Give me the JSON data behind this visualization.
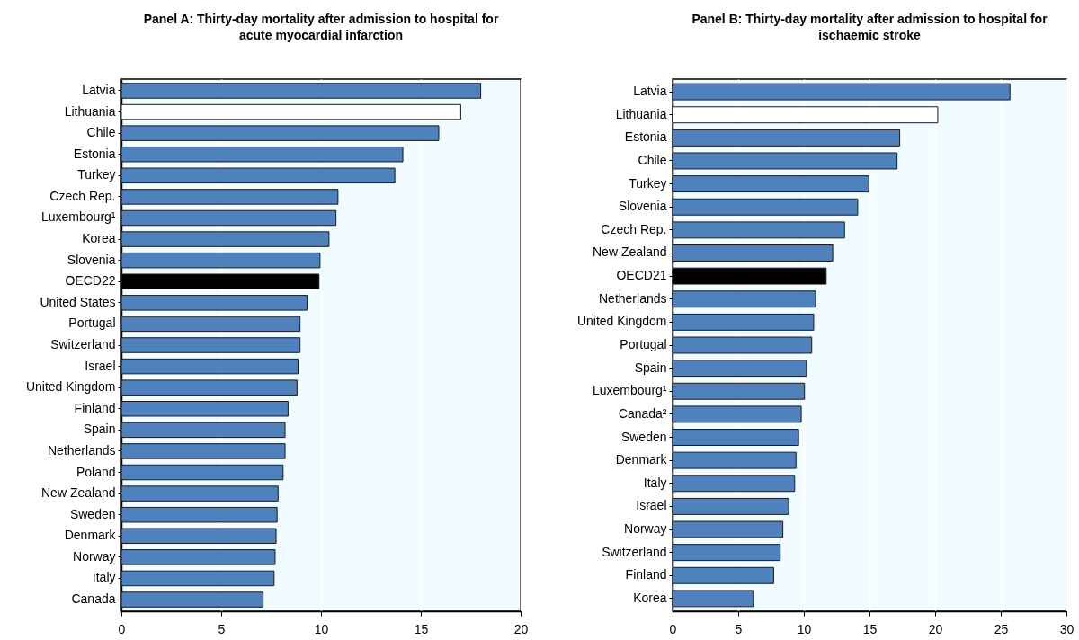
{
  "chart_data": [
    {
      "type": "bar",
      "orientation": "horizontal",
      "title": "Panel A: Thirty-day mortality after admission to hospital for acute myocardial infarction",
      "categories": [
        "Latvia",
        "Lithuania",
        "Chile",
        "Estonia",
        "Turkey",
        "Czech Rep.",
        "Luxembourg¹",
        "Korea",
        "Slovenia",
        "OECD22",
        "United States",
        "Portugal",
        "Switzerland",
        "Israel",
        "United Kingdom",
        "Finland",
        "Spain",
        "Netherlands",
        "Poland",
        "New Zealand",
        "Sweden",
        "Denmark",
        "Norway",
        "Italy",
        "Canada"
      ],
      "values": [
        18.0,
        17.0,
        15.9,
        14.1,
        13.7,
        10.85,
        10.75,
        10.4,
        9.95,
        9.9,
        9.3,
        8.95,
        8.95,
        8.85,
        8.8,
        8.35,
        8.2,
        8.2,
        8.1,
        7.85,
        7.8,
        7.75,
        7.7,
        7.65,
        7.1
      ],
      "colors": [
        "#4f81bd",
        "#ffffff",
        "#4f81bd",
        "#4f81bd",
        "#4f81bd",
        "#4f81bd",
        "#4f81bd",
        "#4f81bd",
        "#4f81bd",
        "#000000",
        "#4f81bd",
        "#4f81bd",
        "#4f81bd",
        "#4f81bd",
        "#4f81bd",
        "#4f81bd",
        "#4f81bd",
        "#4f81bd",
        "#4f81bd",
        "#4f81bd",
        "#4f81bd",
        "#4f81bd",
        "#4f81bd",
        "#4f81bd",
        "#4f81bd"
      ],
      "xlim": [
        0,
        20
      ],
      "xticks": [
        0,
        5,
        10,
        15,
        20
      ],
      "grid": "x"
    },
    {
      "type": "bar",
      "orientation": "horizontal",
      "title": "Panel B: Thirty-day mortality after admission to hospital for ischaemic stroke",
      "categories": [
        "Latvia",
        "Lithuania",
        "Estonia",
        "Chile",
        "Turkey",
        "Slovenia",
        "Czech Rep.",
        "New Zealand",
        "OECD21",
        "Netherlands",
        "United Kingdom",
        "Portugal",
        "Spain",
        "Luxembourg¹",
        "Canada²",
        "Sweden",
        "Denmark",
        "Italy",
        "Israel",
        "Norway",
        "Switzerland",
        "Finland",
        "Korea"
      ],
      "values": [
        25.7,
        20.2,
        17.3,
        17.1,
        14.95,
        14.1,
        13.1,
        12.2,
        11.7,
        10.9,
        10.75,
        10.6,
        10.2,
        10.05,
        9.8,
        9.6,
        9.4,
        9.3,
        8.85,
        8.4,
        8.2,
        7.7,
        6.15
      ],
      "colors": [
        "#4f81bd",
        "#ffffff",
        "#4f81bd",
        "#4f81bd",
        "#4f81bd",
        "#4f81bd",
        "#4f81bd",
        "#4f81bd",
        "#000000",
        "#4f81bd",
        "#4f81bd",
        "#4f81bd",
        "#4f81bd",
        "#4f81bd",
        "#4f81bd",
        "#4f81bd",
        "#4f81bd",
        "#4f81bd",
        "#4f81bd",
        "#4f81bd",
        "#4f81bd",
        "#4f81bd",
        "#4f81bd"
      ],
      "xlim": [
        0,
        30
      ],
      "xticks": [
        0,
        5,
        10,
        15,
        20,
        25,
        30
      ],
      "grid": "x"
    }
  ]
}
